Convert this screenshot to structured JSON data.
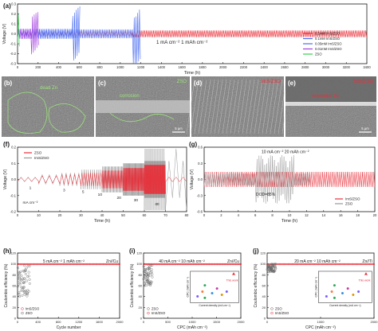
{
  "colors": {
    "red": "#e8303a",
    "blue": "#4a6cf2",
    "purple": "#a440e0",
    "green": "#35d14a",
    "grey": "#9a9a9a",
    "dark": "#1a1a1a",
    "lightgreen": "#9be37a",
    "sem_dark": "#3a3a3a",
    "sem_mid": "#777777"
  },
  "panels": {
    "a": {
      "label": "(a)"
    },
    "b": {
      "label": "(b)",
      "annotation": "dead Zn"
    },
    "c": {
      "label": "(c)",
      "tag": "ZSO",
      "annotation": "corrosion",
      "scale": "5 μm"
    },
    "d": {
      "label": "(d)",
      "tag": "ImS/ZSO"
    },
    "e": {
      "label": "(e)",
      "tag": "ImS/ZSO",
      "annotation": "deposited Zn",
      "scale": "5 μm"
    },
    "f": {
      "label": "(f)"
    },
    "g": {
      "label": "(g)"
    },
    "h": {
      "label": "(h)"
    },
    "i": {
      "label": "(i)"
    },
    "j": {
      "label": "(j)"
    }
  },
  "chart_data": [
    {
      "id": "a",
      "type": "line",
      "xlabel": "Time (h)",
      "ylabel": "Voltage (V)",
      "xlim": [
        0,
        3400
      ],
      "ylim": [
        -0.3,
        0.3
      ],
      "xticks": [
        0,
        200,
        400,
        600,
        800,
        1000,
        1200,
        1400,
        1600,
        1800,
        2000,
        2200,
        2400,
        2600,
        2800,
        3000,
        3200,
        3400
      ],
      "yticks": [
        -0.3,
        -0.2,
        -0.1,
        0.0,
        0.1,
        0.2,
        0.3
      ],
      "annotation": "1 mA cm⁻²   1 mAh cm⁻²",
      "legend": [
        "0.5mM ImS/ZSO",
        "0.1mM ImS/ZSO",
        "0.05mM ImS/ZSO",
        "0.01mM ImS/ZSO",
        "ZSO"
      ],
      "series": [
        {
          "name": "ZSO",
          "segments": [
            [
              0,
              20,
              0.05,
              0.2
            ]
          ]
        },
        {
          "name": "0.01mM ImS/ZSO",
          "segments": [
            [
              0,
              210,
              0.05,
              0.22
            ]
          ]
        },
        {
          "name": "0.05mM ImS/ZSO",
          "segments": [
            [
              0,
              610,
              0.05,
              0.28
            ]
          ]
        },
        {
          "name": "0.1mM ImS/ZSO",
          "segments": [
            [
              0,
              1200,
              0.045,
              0.3
            ]
          ]
        },
        {
          "name": "0.5mM ImS/ZSO",
          "segments": [
            [
              0,
              3400,
              0.035
            ]
          ]
        }
      ]
    },
    {
      "id": "f",
      "type": "line",
      "xlabel": "Time (h)",
      "ylabel": "Voltage (V)",
      "xlim": [
        0,
        80
      ],
      "ylim": [
        -0.2,
        0.2
      ],
      "xticks": [
        0,
        10,
        20,
        30,
        40,
        50,
        60,
        70,
        80
      ],
      "yticks": [
        -0.2,
        -0.1,
        0.0,
        0.1,
        0.2
      ],
      "unit_label": "mA cm⁻²",
      "rate_labels": [
        "1",
        "3",
        "5",
        "10",
        "20",
        "30",
        "40",
        "1"
      ],
      "legend": [
        "ZSO",
        "ImS/ZSO"
      ]
    },
    {
      "id": "g",
      "type": "line",
      "xlabel": "Time (h)",
      "ylabel": "Voltage (V)",
      "xlim": [
        0,
        20
      ],
      "ylim": [
        -0.6,
        0.6
      ],
      "xticks": [
        0,
        2,
        4,
        6,
        8,
        10,
        12,
        14,
        16,
        18,
        20
      ],
      "yticks": [
        -0.6,
        -0.3,
        0.0,
        0.3,
        0.6
      ],
      "annotation": "10 mA cm⁻²  20 mAh cm⁻²",
      "dod": "DOD=85%",
      "legend": [
        "ImS/ZSO",
        "ZSO"
      ]
    },
    {
      "id": "h",
      "type": "scatter",
      "xlabel": "Cycle number",
      "ylabel": "Coulombic efficiency (%)",
      "xlim": [
        0,
        2000
      ],
      "ylim": [
        0,
        120
      ],
      "xticks": [
        0,
        400,
        800,
        1200,
        1600,
        2000
      ],
      "yticks": [
        0,
        20,
        40,
        60,
        80,
        100,
        120
      ],
      "annotation": "5 mA cm⁻²  1 mAh cm⁻²",
      "tag": "Zn//Cu",
      "legend": [
        "ImS/ZSO",
        "ZSO"
      ],
      "series": [
        {
          "name": "ImS/ZSO",
          "ce": 99.8
        },
        {
          "name": "ZSO",
          "ce_range": [
            40,
            95
          ],
          "cycles": 240
        }
      ]
    },
    {
      "id": "i",
      "type": "scatter",
      "xlabel": "CPC (mAh cm⁻²)",
      "ylabel": "Coulombic efficiency (%)",
      "xlim": [
        0,
        2000
      ],
      "ylim": [
        0,
        120
      ],
      "xticks": [
        0,
        500,
        1000,
        1500,
        2000
      ],
      "yticks": [
        0,
        20,
        40,
        60,
        80,
        100,
        120
      ],
      "annotation": "40 mA cm⁻²  10 mAh cm⁻²",
      "tag": "Zn//Cu",
      "legend": [
        "ZSO",
        "ImS/ZSO"
      ],
      "inset": {
        "xlabel": "Current density (mA cm⁻²)",
        "ylabel": "CPC (mAh cm⁻²)",
        "highlight": "This work"
      }
    },
    {
      "id": "j",
      "type": "scatter",
      "xlabel": "CPC (mAh cm⁻²)",
      "ylabel": "Coulombic efficiency (%)",
      "xlim": [
        0,
        2000
      ],
      "ylim": [
        0,
        120
      ],
      "xticks": [
        0,
        1000,
        2000
      ],
      "yticks": [
        0,
        20,
        40,
        60,
        80,
        100,
        120
      ],
      "annotation": "20 mA cm⁻²  10 mAh cm⁻²",
      "tag": "Zn//Ti",
      "legend": [
        "ZSO",
        "ImS/ZSO"
      ],
      "inset": {
        "xlabel": "Current density (mA cm⁻²)",
        "ylabel": "CPC (mAh cm⁻²)",
        "highlight": "This work"
      }
    }
  ]
}
